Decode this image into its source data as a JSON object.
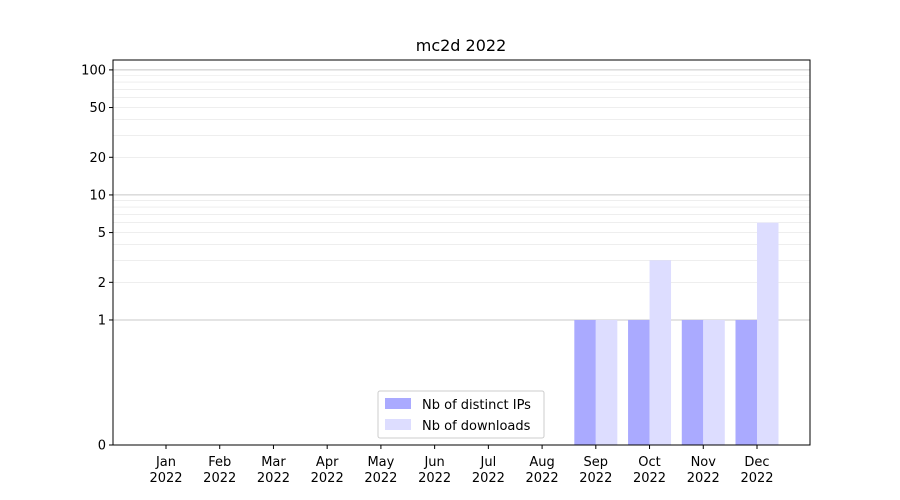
{
  "chart_data": {
    "type": "bar",
    "title": "mc2d 2022",
    "xlabel": "",
    "ylabel": "",
    "y_scale": "symlog",
    "ylim": [
      0,
      120
    ],
    "y_ticks": [
      {
        "value": 0,
        "label": "0"
      },
      {
        "value": 1,
        "label": "1"
      },
      {
        "value": 2,
        "label": "2"
      },
      {
        "value": 5,
        "label": "5"
      },
      {
        "value": 10,
        "label": "10"
      },
      {
        "value": 20,
        "label": "20"
      },
      {
        "value": 50,
        "label": "50"
      },
      {
        "value": 100,
        "label": "100"
      }
    ],
    "grid": true,
    "legend_position": "bottom-center",
    "categories": [
      [
        "Jan",
        "2022"
      ],
      [
        "Feb",
        "2022"
      ],
      [
        "Mar",
        "2022"
      ],
      [
        "Apr",
        "2022"
      ],
      [
        "May",
        "2022"
      ],
      [
        "Jun",
        "2022"
      ],
      [
        "Jul",
        "2022"
      ],
      [
        "Aug",
        "2022"
      ],
      [
        "Sep",
        "2022"
      ],
      [
        "Oct",
        "2022"
      ],
      [
        "Nov",
        "2022"
      ],
      [
        "Dec",
        "2022"
      ]
    ],
    "series": [
      {
        "name": "Nb of distinct IPs",
        "color": "#aaaaff",
        "values": [
          0,
          0,
          0,
          0,
          0,
          0,
          0,
          0,
          1,
          1,
          1,
          1
        ]
      },
      {
        "name": "Nb of downloads",
        "color": "#ddddff",
        "values": [
          0,
          0,
          0,
          0,
          0,
          0,
          0,
          0,
          1,
          3,
          1,
          6
        ]
      }
    ]
  }
}
